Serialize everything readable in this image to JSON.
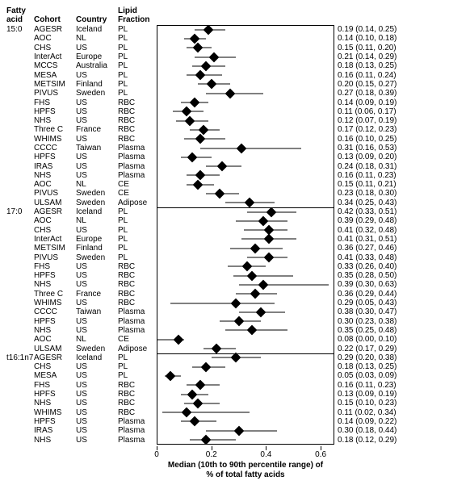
{
  "headers": {
    "fatty_acid_l1": "Fatty",
    "fatty_acid_l2": "acid",
    "cohort": "Cohort",
    "country": "Country",
    "lipid_l1": "Lipid",
    "lipid_l2": "Fraction"
  },
  "axis": {
    "xmin": 0,
    "xmax": 0.65,
    "ticks": [
      0,
      0.2,
      0.4,
      0.6
    ],
    "tick_labels": [
      "0",
      "0.2",
      "0.4",
      "0.6"
    ],
    "title_l1": "Median (10th to 90th percentile range) of",
    "title_l2": "% of total fatty acids"
  },
  "style": {
    "diamond_color": "#000000",
    "line_color": "#000000",
    "background": "#ffffff",
    "font_size_row": 10,
    "font_size_header": 10
  },
  "groups": [
    {
      "fatty_acid": "15:0",
      "rows": [
        {
          "cohort": "AGESR",
          "country": "Iceland",
          "lipid": "PL",
          "median": 0.19,
          "lo": 0.14,
          "hi": 0.25,
          "disp": "0.19 (0.14, 0.25)"
        },
        {
          "cohort": "AOC",
          "country": "NL",
          "lipid": "PL",
          "median": 0.14,
          "lo": 0.1,
          "hi": 0.18,
          "disp": "0.14 (0.10, 0.18)"
        },
        {
          "cohort": "CHS",
          "country": "US",
          "lipid": "PL",
          "median": 0.15,
          "lo": 0.11,
          "hi": 0.2,
          "disp": "0.15 (0.11, 0.20)"
        },
        {
          "cohort": "InterAct",
          "country": "Europe",
          "lipid": "PL",
          "median": 0.21,
          "lo": 0.14,
          "hi": 0.29,
          "disp": "0.21 (0.14, 0.29)"
        },
        {
          "cohort": "MCCS",
          "country": "Australia",
          "lipid": "PL",
          "median": 0.18,
          "lo": 0.13,
          "hi": 0.25,
          "disp": "0.18 (0.13, 0.25)"
        },
        {
          "cohort": "MESA",
          "country": "US",
          "lipid": "PL",
          "median": 0.16,
          "lo": 0.11,
          "hi": 0.24,
          "disp": "0.16 (0.11, 0.24)"
        },
        {
          "cohort": "METSIM",
          "country": "Finland",
          "lipid": "PL",
          "median": 0.2,
          "lo": 0.15,
          "hi": 0.27,
          "disp": "0.20 (0.15, 0.27)"
        },
        {
          "cohort": "PIVUS",
          "country": "Sweden",
          "lipid": "PL",
          "median": 0.27,
          "lo": 0.18,
          "hi": 0.39,
          "disp": "0.27 (0.18, 0.39)"
        },
        {
          "cohort": "FHS",
          "country": "US",
          "lipid": "RBC",
          "median": 0.14,
          "lo": 0.09,
          "hi": 0.19,
          "disp": "0.14 (0.09, 0.19)"
        },
        {
          "cohort": "HPFS",
          "country": "US",
          "lipid": "RBC",
          "median": 0.11,
          "lo": 0.06,
          "hi": 0.17,
          "disp": "0.11 (0.06, 0.17)"
        },
        {
          "cohort": "NHS",
          "country": "US",
          "lipid": "RBC",
          "median": 0.12,
          "lo": 0.07,
          "hi": 0.19,
          "disp": "0.12 (0.07, 0.19)"
        },
        {
          "cohort": "Three C",
          "country": "France",
          "lipid": "RBC",
          "median": 0.17,
          "lo": 0.12,
          "hi": 0.23,
          "disp": "0.17 (0.12, 0.23)"
        },
        {
          "cohort": "WHIMS",
          "country": "US",
          "lipid": "RBC",
          "median": 0.16,
          "lo": 0.1,
          "hi": 0.25,
          "disp": "0.16 (0.10, 0.25)"
        },
        {
          "cohort": "CCCC",
          "country": "Taiwan",
          "lipid": "Plasma",
          "median": 0.31,
          "lo": 0.16,
          "hi": 0.53,
          "disp": "0.31 (0.16, 0.53)"
        },
        {
          "cohort": "HPFS",
          "country": "US",
          "lipid": "Plasma",
          "median": 0.13,
          "lo": 0.09,
          "hi": 0.2,
          "disp": "0.13 (0.09, 0.20)"
        },
        {
          "cohort": "IRAS",
          "country": "US",
          "lipid": "Plasma",
          "median": 0.24,
          "lo": 0.18,
          "hi": 0.31,
          "disp": "0.24 (0.18, 0.31)"
        },
        {
          "cohort": "NHS",
          "country": "US",
          "lipid": "Plasma",
          "median": 0.16,
          "lo": 0.11,
          "hi": 0.23,
          "disp": "0.16 (0.11, 0.23)"
        },
        {
          "cohort": "AOC",
          "country": "NL",
          "lipid": "CE",
          "median": 0.15,
          "lo": 0.11,
          "hi": 0.21,
          "disp": "0.15 (0.11, 0.21)"
        },
        {
          "cohort": "PIVUS",
          "country": "Sweden",
          "lipid": "CE",
          "median": 0.23,
          "lo": 0.18,
          "hi": 0.3,
          "disp": "0.23 (0.18, 0.30)"
        },
        {
          "cohort": "ULSAM",
          "country": "Sweden",
          "lipid": "Adipose",
          "median": 0.34,
          "lo": 0.25,
          "hi": 0.43,
          "disp": "0.34 (0.25, 0.43)"
        }
      ]
    },
    {
      "fatty_acid": "17:0",
      "rows": [
        {
          "cohort": "AGESR",
          "country": "Iceland",
          "lipid": "PL",
          "median": 0.42,
          "lo": 0.33,
          "hi": 0.51,
          "disp": "0.42 (0.33, 0.51)"
        },
        {
          "cohort": "AOC",
          "country": "NL",
          "lipid": "PL",
          "median": 0.39,
          "lo": 0.29,
          "hi": 0.48,
          "disp": "0.39 (0.29, 0.48)"
        },
        {
          "cohort": "CHS",
          "country": "US",
          "lipid": "PL",
          "median": 0.41,
          "lo": 0.32,
          "hi": 0.48,
          "disp": "0.41 (0.32, 0.48)"
        },
        {
          "cohort": "InterAct",
          "country": "Europe",
          "lipid": "PL",
          "median": 0.41,
          "lo": 0.31,
          "hi": 0.51,
          "disp": "0.41 (0.31, 0.51)"
        },
        {
          "cohort": "METSIM",
          "country": "Finland",
          "lipid": "PL",
          "median": 0.36,
          "lo": 0.27,
          "hi": 0.46,
          "disp": "0.36 (0.27, 0.46)"
        },
        {
          "cohort": "PIVUS",
          "country": "Sweden",
          "lipid": "PL",
          "median": 0.41,
          "lo": 0.33,
          "hi": 0.48,
          "disp": "0.41 (0.33, 0.48)"
        },
        {
          "cohort": "FHS",
          "country": "US",
          "lipid": "RBC",
          "median": 0.33,
          "lo": 0.26,
          "hi": 0.4,
          "disp": "0.33 (0.26, 0.40)"
        },
        {
          "cohort": "HPFS",
          "country": "US",
          "lipid": "RBC",
          "median": 0.35,
          "lo": 0.28,
          "hi": 0.5,
          "disp": "0.35 (0.28, 0.50)"
        },
        {
          "cohort": "NHS",
          "country": "US",
          "lipid": "RBC",
          "median": 0.39,
          "lo": 0.3,
          "hi": 0.63,
          "disp": "0.39 (0.30, 0.63)"
        },
        {
          "cohort": "Three C",
          "country": "France",
          "lipid": "RBC",
          "median": 0.36,
          "lo": 0.29,
          "hi": 0.44,
          "disp": "0.36 (0.29, 0.44)"
        },
        {
          "cohort": "WHIMS",
          "country": "US",
          "lipid": "RBC",
          "median": 0.29,
          "lo": 0.05,
          "hi": 0.43,
          "disp": "0.29 (0.05, 0.43)"
        },
        {
          "cohort": "CCCC",
          "country": "Taiwan",
          "lipid": "Plasma",
          "median": 0.38,
          "lo": 0.3,
          "hi": 0.47,
          "disp": "0.38 (0.30, 0.47)"
        },
        {
          "cohort": "HPFS",
          "country": "US",
          "lipid": "Plasma",
          "median": 0.3,
          "lo": 0.23,
          "hi": 0.38,
          "disp": "0.30 (0.23, 0.38)"
        },
        {
          "cohort": "NHS",
          "country": "US",
          "lipid": "Plasma",
          "median": 0.35,
          "lo": 0.25,
          "hi": 0.48,
          "disp": "0.35 (0.25, 0.48)"
        },
        {
          "cohort": "AOC",
          "country": "NL",
          "lipid": "CE",
          "median": 0.08,
          "lo": 0.0,
          "hi": 0.1,
          "disp": "0.08 (0.00, 0.10)"
        },
        {
          "cohort": "ULSAM",
          "country": "Sweden",
          "lipid": "Adipose",
          "median": 0.22,
          "lo": 0.17,
          "hi": 0.29,
          "disp": "0.22 (0.17, 0.29)"
        }
      ]
    },
    {
      "fatty_acid": "t16:1n7",
      "rows": [
        {
          "cohort": "AGESR",
          "country": "Iceland",
          "lipid": "PL",
          "median": 0.29,
          "lo": 0.2,
          "hi": 0.38,
          "disp": "0.29 (0.20, 0.38)"
        },
        {
          "cohort": "CHS",
          "country": "US",
          "lipid": "PL",
          "median": 0.18,
          "lo": 0.13,
          "hi": 0.25,
          "disp": "0.18 (0.13, 0.25)"
        },
        {
          "cohort": "MESA",
          "country": "US",
          "lipid": "PL",
          "median": 0.05,
          "lo": 0.03,
          "hi": 0.09,
          "disp": "0.05 (0.03, 0.09)"
        },
        {
          "cohort": "FHS",
          "country": "US",
          "lipid": "RBC",
          "median": 0.16,
          "lo": 0.11,
          "hi": 0.23,
          "disp": "0.16 (0.11, 0.23)"
        },
        {
          "cohort": "HPFS",
          "country": "US",
          "lipid": "RBC",
          "median": 0.13,
          "lo": 0.09,
          "hi": 0.19,
          "disp": "0.13 (0.09, 0.19)"
        },
        {
          "cohort": "NHS",
          "country": "US",
          "lipid": "RBC",
          "median": 0.15,
          "lo": 0.1,
          "hi": 0.23,
          "disp": "0.15 (0.10, 0.23)"
        },
        {
          "cohort": "WHIMS",
          "country": "US",
          "lipid": "RBC",
          "median": 0.11,
          "lo": 0.02,
          "hi": 0.34,
          "disp": "0.11 (0.02, 0.34)"
        },
        {
          "cohort": "HPFS",
          "country": "US",
          "lipid": "Plasma",
          "median": 0.14,
          "lo": 0.09,
          "hi": 0.22,
          "disp": "0.14 (0.09, 0.22)"
        },
        {
          "cohort": "IRAS",
          "country": "US",
          "lipid": "Plasma",
          "median": 0.3,
          "lo": 0.18,
          "hi": 0.44,
          "disp": "0.30 (0.18, 0.44)"
        },
        {
          "cohort": "NHS",
          "country": "US",
          "lipid": "Plasma",
          "median": 0.18,
          "lo": 0.12,
          "hi": 0.29,
          "disp": "0.18 (0.12, 0.29)"
        }
      ]
    }
  ]
}
